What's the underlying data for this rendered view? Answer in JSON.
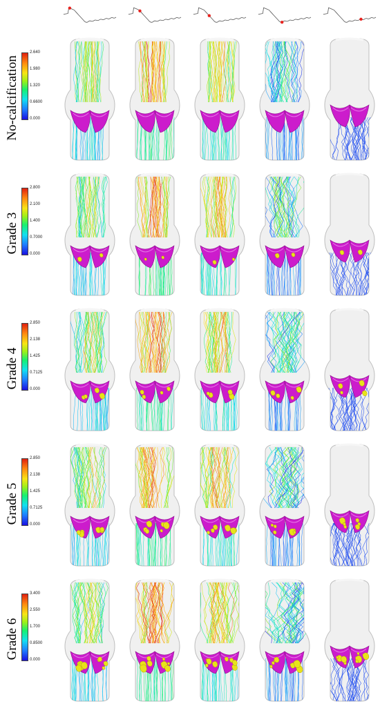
{
  "rows": [
    {
      "label": "No-calcification",
      "ticks": [
        "2.640",
        "1.980",
        "1.320",
        "0.6600",
        "0.000"
      ],
      "calc": 0
    },
    {
      "label": "Grade 3",
      "ticks": [
        "2.800",
        "2.100",
        "1.400",
        "0.7000",
        "0.000"
      ],
      "calc": 1
    },
    {
      "label": "Grade 4",
      "ticks": [
        "2.850",
        "2.138",
        "1.425",
        "0.7125",
        "0.000"
      ],
      "calc": 2
    },
    {
      "label": "Grade 5",
      "ticks": [
        "2.850",
        "2.138",
        "1.425",
        "0.7125",
        "0.000"
      ],
      "calc": 3
    },
    {
      "label": "Grade 6",
      "ticks": [
        "3.400",
        "2.550",
        "1.700",
        "0.8500",
        "0.000"
      ],
      "calc": 4
    }
  ],
  "phases": [
    0.12,
    0.22,
    0.3,
    0.45,
    0.72
  ],
  "colors": {
    "leaflet": "#cc1ccc",
    "calcification": "#e9e21a",
    "vessel": "#e4e4e4",
    "marker": "#e8231f"
  }
}
